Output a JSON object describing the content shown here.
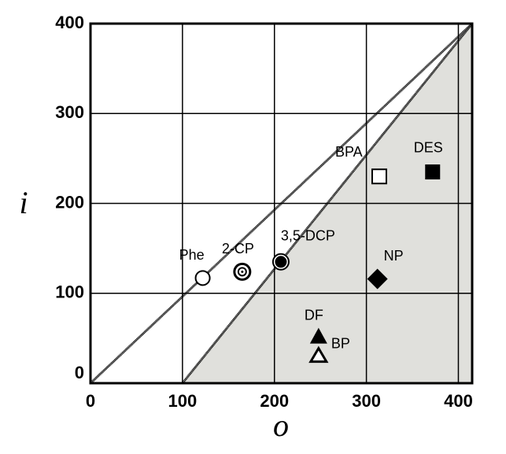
{
  "chart_data": {
    "type": "scatter",
    "x_label": "o",
    "y_label": "i",
    "xlim": [
      0,
      415
    ],
    "ylim": [
      0,
      400
    ],
    "xticks": [
      0,
      100,
      200,
      300,
      400
    ],
    "yticks": [
      0,
      100,
      200,
      300,
      400
    ],
    "grid": true,
    "shade_color": "#e0e0dc",
    "lines": [
      {
        "x": [
          0,
          415
        ],
        "y": [
          0,
          400
        ]
      },
      {
        "x": [
          100,
          415
        ],
        "y": [
          0,
          400
        ]
      }
    ],
    "series": [
      {
        "name": "Phe",
        "marker": "open-circle",
        "color": "#000000",
        "x": [
          122
        ],
        "y": [
          117
        ]
      },
      {
        "name": "2-CP",
        "marker": "double-circle",
        "color": "#000000",
        "x": [
          165
        ],
        "y": [
          124
        ]
      },
      {
        "name": "3,5-DCP",
        "marker": "filled-circle",
        "color": "#000000",
        "x": [
          207
        ],
        "y": [
          135
        ]
      },
      {
        "name": "BPA",
        "marker": "open-square",
        "color": "#000000",
        "x": [
          314
        ],
        "y": [
          230
        ]
      },
      {
        "name": "DES",
        "marker": "filled-square",
        "color": "#000000",
        "x": [
          372
        ],
        "y": [
          235
        ]
      },
      {
        "name": "NP",
        "marker": "filled-diamond",
        "color": "#000000",
        "x": [
          312
        ],
        "y": [
          116
        ]
      },
      {
        "name": "DF",
        "marker": "filled-triangle",
        "color": "#000000",
        "x": [
          248
        ],
        "y": [
          52
        ]
      },
      {
        "name": "BP",
        "marker": "open-triangle",
        "color": "#000000",
        "x": [
          248
        ],
        "y": [
          31
        ]
      }
    ]
  }
}
